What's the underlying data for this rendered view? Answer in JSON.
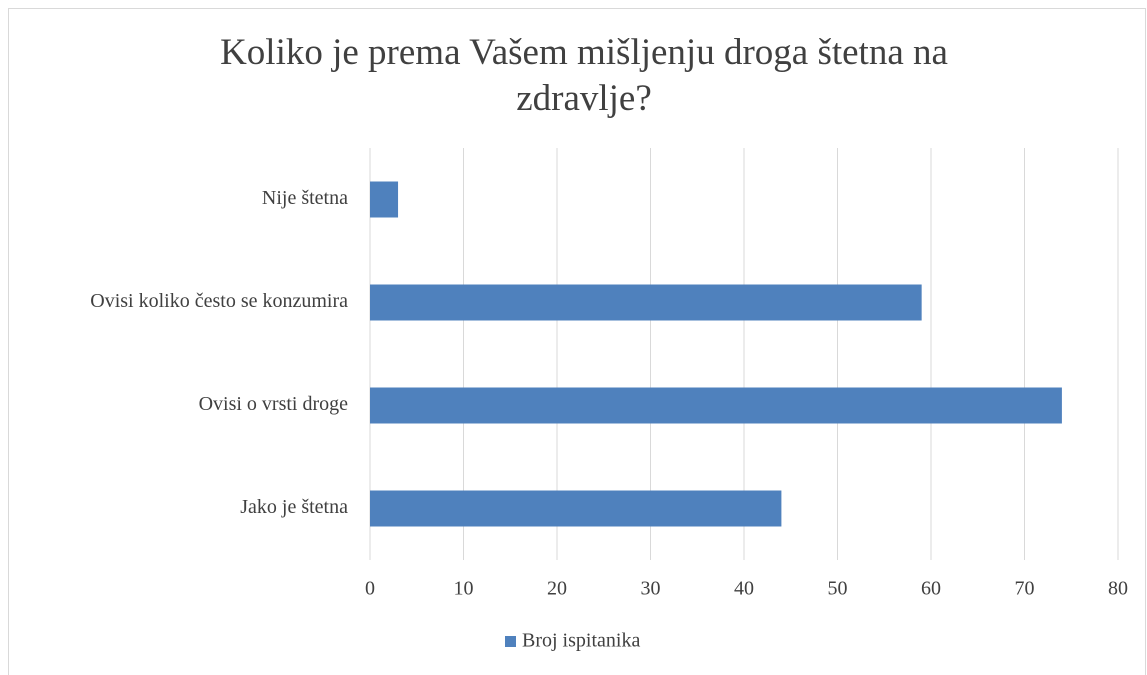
{
  "chart_data": {
    "type": "hbar",
    "title": "Koliko je prema Vašem mišljenju droga štetna na zdravlje?",
    "categories": [
      "Nije štetna",
      "Ovisi koliko često se konzumira",
      "Ovisi o vrsti droge",
      "Jako je štetna"
    ],
    "series": [
      {
        "name": "Broj ispitanika",
        "color": "#4f81bd",
        "values": [
          3,
          59,
          74,
          44
        ]
      }
    ],
    "xlim": [
      0,
      80
    ],
    "xticks": [
      0,
      10,
      20,
      30,
      40,
      50,
      60,
      70,
      80
    ],
    "grid": true,
    "legend": "bottom"
  }
}
